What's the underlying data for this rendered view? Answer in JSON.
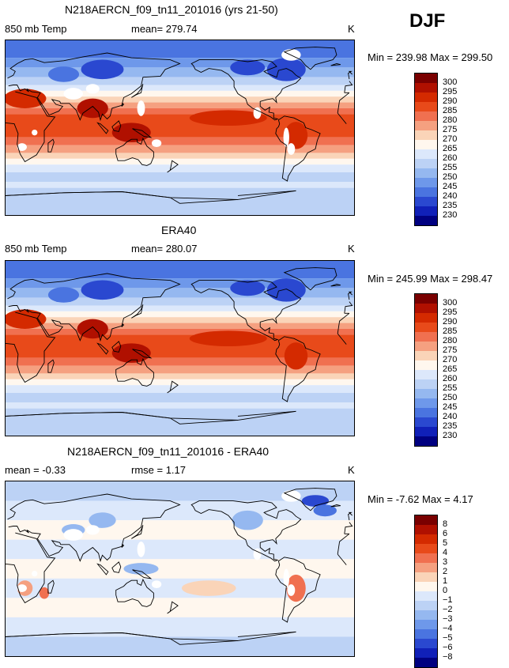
{
  "season": "DJF",
  "panels": [
    {
      "title": "N218AERCN_f09_tn11_201016 (yrs 21-50)",
      "left_label": "850 mb Temp",
      "center_label": "mean= 279.74",
      "unit": "K",
      "minmax": "Min = 239.98 Max = 299.50",
      "levels": [
        "300",
        "295",
        "290",
        "285",
        "280",
        "275",
        "270",
        "265",
        "260",
        "255",
        "250",
        "245",
        "240",
        "235",
        "230"
      ],
      "kind": "abs",
      "mask": true
    },
    {
      "title": "ERA40",
      "left_label": "850 mb Temp",
      "center_label": "mean= 280.07",
      "unit": "K",
      "minmax": "Min = 245.99 Max = 298.47",
      "levels": [
        "300",
        "295",
        "290",
        "285",
        "280",
        "275",
        "270",
        "265",
        "260",
        "255",
        "250",
        "245",
        "240",
        "235",
        "230"
      ],
      "kind": "abs",
      "mask": false
    },
    {
      "title": "N218AERCN_f09_tn11_201016 - ERA40",
      "left_label": "mean =  -0.33",
      "center_label": "rmse =  1.17",
      "unit": "K",
      "minmax": "Min =  -7.62 Max =   4.17",
      "levels": [
        "8",
        "6",
        "5",
        "4",
        "3",
        "2",
        "1",
        "0",
        "−1",
        "−2",
        "−3",
        "−4",
        "−5",
        "−6",
        "−8"
      ],
      "kind": "diff",
      "mask": true
    }
  ],
  "colors": {
    "scale": [
      "#7a0000",
      "#b01000",
      "#d42a00",
      "#e84a1a",
      "#f07050",
      "#f5a080",
      "#fad4b8",
      "#fff7ee",
      "#dce8fb",
      "#bcd2f5",
      "#95b8f0",
      "#6e98ea",
      "#4a74e0",
      "#2a48d0",
      "#1020b8",
      "#000080"
    ]
  }
}
